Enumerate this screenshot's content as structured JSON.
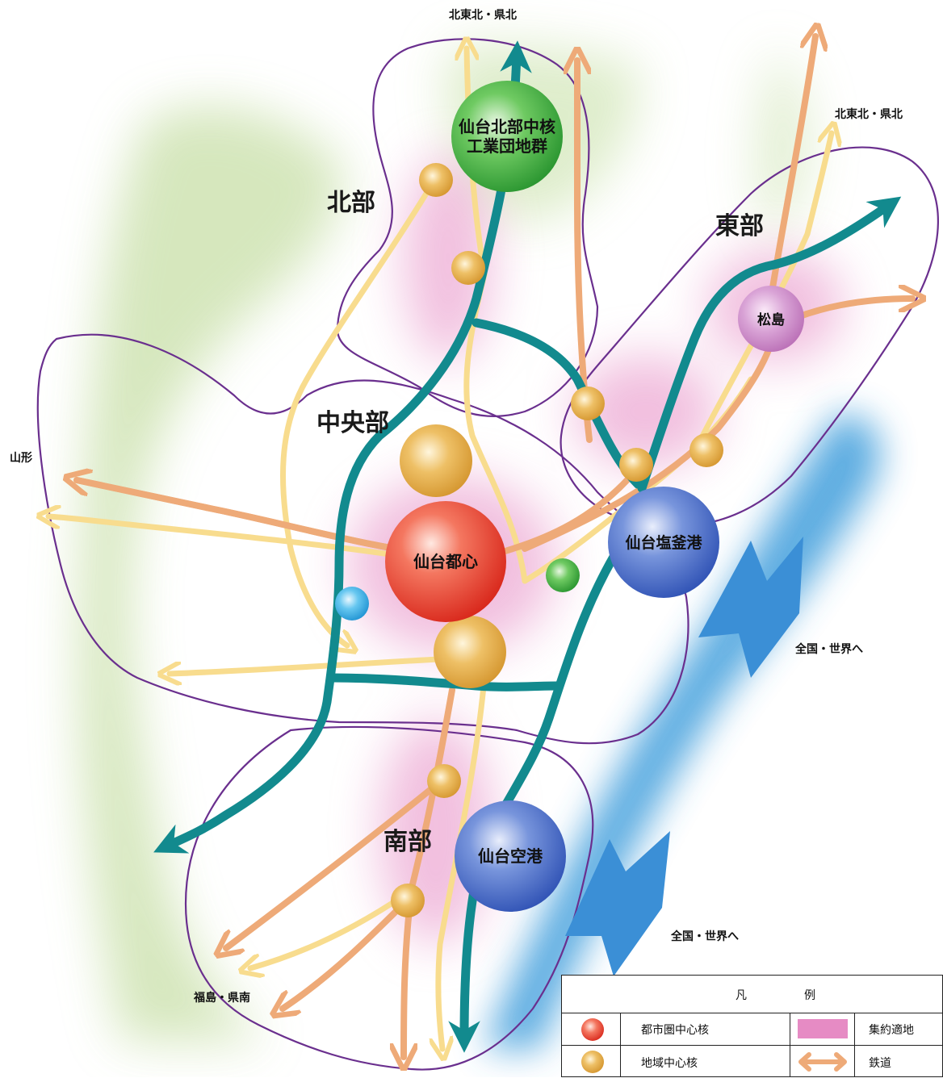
{
  "regions": {
    "north": "北部",
    "central": "中央部",
    "east": "東部",
    "south": "南部"
  },
  "destinations": {
    "north_a": "北東北・県北",
    "north_b": "北東北・県北",
    "yamagata": "山形",
    "fukushima": "福島・県南",
    "world_a": "全国・世界へ",
    "world_b": "全国・世界へ"
  },
  "nodes": {
    "industrial_line1": "仙台北部中核",
    "industrial_line2": "工業団地群",
    "city_center": "仙台都心",
    "port": "仙台塩釜港",
    "airport": "仙台空港",
    "matsushima": "松島"
  },
  "legend": {
    "title_a": "凡",
    "title_b": "例",
    "metro_core": "都市圏中心核",
    "regional_core": "地域中心核",
    "concentration_area": "集約適地",
    "railway": "鉄道"
  },
  "colors": {
    "highway": "#128a8e",
    "rail": "#eeaa78",
    "road": "#f8dc8e",
    "boundary": "#6a2f8e",
    "sea": "#3f9edc",
    "greenery": "#d8e9bf",
    "concentration": "#e68bc4",
    "metro_core": "#e8402e",
    "regional_core": "#e2a43a",
    "industrial": "#3aa63c",
    "port": "#3b64c4",
    "matsushima": "#c97fc6"
  }
}
